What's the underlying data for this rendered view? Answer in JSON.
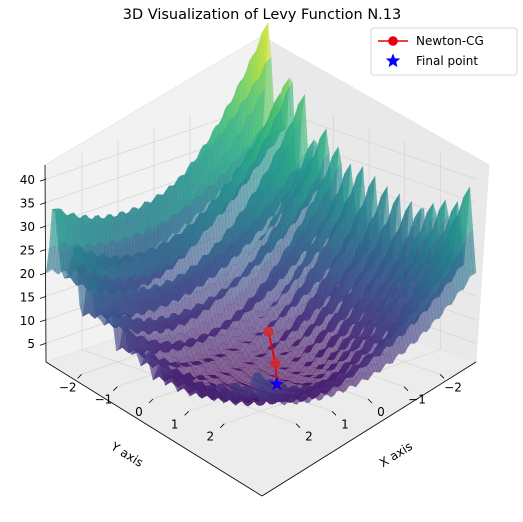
{
  "chart_data": {
    "type": "surface3d",
    "title": "3D Visualization of Levy Function N.13",
    "xlabel": "X axis",
    "ylabel": "Y axis",
    "zlabel": "",
    "xlim": [
      -3,
      3
    ],
    "ylim": [
      -3,
      3
    ],
    "zlim": [
      1,
      43
    ],
    "x_ticks": [
      -2,
      -1,
      0,
      1,
      2
    ],
    "y_ticks": [
      -2,
      -1,
      0,
      1,
      2
    ],
    "z_ticks": [
      5,
      10,
      15,
      20,
      25,
      30,
      35,
      40
    ],
    "x_tick_labels": [
      "−2",
      "−1",
      "0",
      "1",
      "2"
    ],
    "y_tick_labels": [
      "−2",
      "−1",
      "0",
      "1",
      "2"
    ],
    "z_tick_labels": [
      "5",
      "10",
      "15",
      "20",
      "25",
      "30",
      "35",
      "40"
    ],
    "colormap": "viridis",
    "grid": true,
    "legend_position": "top-right",
    "series": [
      {
        "name": "Newton-CG",
        "kind": "line-with-markers",
        "color": "#e8000b",
        "marker_color": "#d62728",
        "points": [
          {
            "x": -1.0,
            "y": -0.8,
            "z": 2.7
          },
          {
            "x": -0.05,
            "y": 0.35,
            "z": 1.5
          },
          {
            "x": 0.6,
            "y": 1.05,
            "z": 0.6
          }
        ]
      },
      {
        "name": "Final point",
        "kind": "star",
        "color": "#0000ff",
        "points": [
          {
            "x": 0.6,
            "y": 1.05,
            "z": 0.6
          }
        ]
      }
    ]
  }
}
